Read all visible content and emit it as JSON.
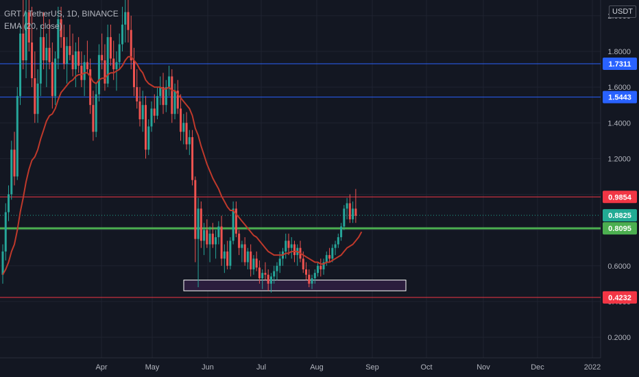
{
  "header": {
    "symbol_line": "GRT / TetherUS, 1D, BINANCE",
    "indicator_line": "EMA (20, close)",
    "currency": "USDT"
  },
  "colors": {
    "background": "#131722",
    "grid": "#1f2330",
    "axis_text": "#b2b5be",
    "candle_up": "#26a69a",
    "candle_down": "#ef5350",
    "ema": "#c0392b",
    "blue_line": "#2962ff",
    "red_line": "#f23645",
    "green_line": "#4caf50",
    "current_price": "#22ab94",
    "zone_fill": "#2b1d3d",
    "zone_border": "#ffffff"
  },
  "chart_data": {
    "type": "candlestick",
    "title": "GRT / TetherUS, 1D, BINANCE",
    "x_ticks": [
      "Apr",
      "May",
      "Jun",
      "Jul",
      "Aug",
      "Sep",
      "Oct",
      "Nov",
      "Dec",
      "2022"
    ],
    "y_ticks": [
      "0.2000",
      "0.4000",
      "0.6000",
      "0.8000",
      "1.0000",
      "1.2000",
      "1.4000",
      "1.6000",
      "1.8000",
      "2.0000"
    ],
    "ylim": [
      0.0,
      2.05
    ],
    "grid": true,
    "indicator": "EMA (20, close)",
    "candles": [
      [
        0.55,
        0.72,
        0.5,
        0.68
      ],
      [
        0.68,
        0.95,
        0.63,
        0.9
      ],
      [
        0.9,
        1.05,
        0.85,
        1.0
      ],
      [
        1.0,
        1.3,
        0.97,
        1.25
      ],
      [
        1.25,
        1.35,
        1.05,
        1.1
      ],
      [
        1.1,
        1.6,
        1.08,
        1.55
      ],
      [
        1.55,
        1.95,
        1.5,
        1.9
      ],
      [
        1.9,
        2.1,
        1.7,
        1.75
      ],
      [
        1.75,
        2.1,
        1.65,
        2.02
      ],
      [
        2.02,
        2.1,
        1.8,
        1.85
      ],
      [
        1.85,
        2.05,
        1.6,
        1.65
      ],
      [
        1.65,
        1.8,
        1.4,
        1.45
      ],
      [
        1.45,
        1.7,
        1.4,
        1.62
      ],
      [
        1.62,
        1.95,
        1.55,
        1.88
      ],
      [
        1.88,
        2.02,
        1.7,
        1.75
      ],
      [
        1.75,
        1.9,
        1.6,
        1.82
      ],
      [
        1.82,
        1.98,
        1.7,
        1.74
      ],
      [
        1.74,
        1.85,
        1.48,
        1.55
      ],
      [
        1.55,
        1.8,
        1.5,
        1.76
      ],
      [
        1.76,
        2.05,
        1.7,
        1.98
      ],
      [
        1.98,
        2.05,
        1.82,
        1.88
      ],
      [
        1.88,
        1.95,
        1.7,
        1.73
      ],
      [
        1.73,
        1.88,
        1.62,
        1.83
      ],
      [
        1.83,
        1.95,
        1.75,
        1.78
      ],
      [
        1.78,
        1.9,
        1.66,
        1.7
      ],
      [
        1.7,
        1.85,
        1.6,
        1.8
      ],
      [
        1.8,
        1.88,
        1.68,
        1.72
      ],
      [
        1.72,
        1.8,
        1.6,
        1.64
      ],
      [
        1.64,
        1.78,
        1.55,
        1.74
      ],
      [
        1.74,
        1.86,
        1.68,
        1.7
      ],
      [
        1.7,
        1.76,
        1.45,
        1.5
      ],
      [
        1.5,
        1.58,
        1.3,
        1.35
      ],
      [
        1.35,
        1.62,
        1.32,
        1.56
      ],
      [
        1.56,
        1.84,
        1.52,
        1.78
      ],
      [
        1.78,
        1.9,
        1.7,
        1.75
      ],
      [
        1.75,
        1.84,
        1.58,
        1.62
      ],
      [
        1.62,
        1.95,
        1.6,
        1.88
      ],
      [
        1.88,
        1.95,
        1.72,
        1.76
      ],
      [
        1.76,
        1.86,
        1.64,
        1.7
      ],
      [
        1.7,
        1.8,
        1.58,
        1.74
      ],
      [
        1.74,
        1.9,
        1.7,
        1.84
      ],
      [
        1.84,
        2.05,
        1.8,
        1.95
      ],
      [
        1.95,
        2.1,
        1.85,
        2.02
      ],
      [
        2.02,
        2.1,
        1.85,
        1.92
      ],
      [
        1.92,
        2.0,
        1.7,
        1.75
      ],
      [
        1.75,
        1.82,
        1.55,
        1.6
      ],
      [
        1.6,
        1.7,
        1.48,
        1.52
      ],
      [
        1.52,
        1.6,
        1.38,
        1.42
      ],
      [
        1.42,
        1.58,
        1.35,
        1.5
      ],
      [
        1.5,
        1.55,
        1.2,
        1.25
      ],
      [
        1.25,
        1.42,
        1.22,
        1.38
      ],
      [
        1.38,
        1.52,
        1.35,
        1.48
      ],
      [
        1.48,
        1.56,
        1.4,
        1.44
      ],
      [
        1.44,
        1.6,
        1.42,
        1.55
      ],
      [
        1.55,
        1.66,
        1.5,
        1.6
      ],
      [
        1.6,
        1.68,
        1.45,
        1.5
      ],
      [
        1.5,
        1.64,
        1.46,
        1.6
      ],
      [
        1.6,
        1.72,
        1.55,
        1.66
      ],
      [
        1.66,
        1.7,
        1.4,
        1.45
      ],
      [
        1.45,
        1.62,
        1.42,
        1.58
      ],
      [
        1.58,
        1.64,
        1.45,
        1.48
      ],
      [
        1.48,
        1.56,
        1.3,
        1.35
      ],
      [
        1.35,
        1.45,
        1.28,
        1.4
      ],
      [
        1.4,
        1.46,
        1.25,
        1.28
      ],
      [
        1.28,
        1.36,
        1.22,
        1.32
      ],
      [
        1.32,
        1.36,
        1.05,
        1.08
      ],
      [
        1.08,
        1.1,
        0.62,
        0.75
      ],
      [
        0.75,
        0.98,
        0.48,
        0.92
      ],
      [
        0.92,
        0.96,
        0.7,
        0.74
      ],
      [
        0.74,
        0.84,
        0.66,
        0.8
      ],
      [
        0.8,
        0.86,
        0.7,
        0.72
      ],
      [
        0.72,
        0.82,
        0.62,
        0.78
      ],
      [
        0.78,
        0.84,
        0.7,
        0.72
      ],
      [
        0.72,
        0.8,
        0.64,
        0.76
      ],
      [
        0.76,
        0.85,
        0.72,
        0.82
      ],
      [
        0.82,
        0.88,
        0.6,
        0.64
      ],
      [
        0.64,
        0.72,
        0.56,
        0.68
      ],
      [
        0.68,
        0.74,
        0.58,
        0.6
      ],
      [
        0.6,
        0.76,
        0.58,
        0.74
      ],
      [
        0.74,
        0.96,
        0.72,
        0.92
      ],
      [
        0.92,
        0.96,
        0.76,
        0.78
      ],
      [
        0.78,
        0.8,
        0.66,
        0.7
      ],
      [
        0.7,
        0.74,
        0.62,
        0.72
      ],
      [
        0.72,
        0.76,
        0.6,
        0.62
      ],
      [
        0.62,
        0.7,
        0.58,
        0.68
      ],
      [
        0.68,
        0.72,
        0.54,
        0.58
      ],
      [
        0.58,
        0.66,
        0.55,
        0.64
      ],
      [
        0.64,
        0.68,
        0.57,
        0.59
      ],
      [
        0.59,
        0.63,
        0.5,
        0.53
      ],
      [
        0.53,
        0.58,
        0.47,
        0.56
      ],
      [
        0.56,
        0.62,
        0.52,
        0.55
      ],
      [
        0.55,
        0.58,
        0.46,
        0.5
      ],
      [
        0.5,
        0.56,
        0.45,
        0.54
      ],
      [
        0.54,
        0.6,
        0.5,
        0.57
      ],
      [
        0.57,
        0.62,
        0.52,
        0.6
      ],
      [
        0.6,
        0.68,
        0.56,
        0.64
      ],
      [
        0.64,
        0.7,
        0.6,
        0.68
      ],
      [
        0.68,
        0.78,
        0.64,
        0.74
      ],
      [
        0.74,
        0.78,
        0.66,
        0.7
      ],
      [
        0.7,
        0.76,
        0.64,
        0.72
      ],
      [
        0.72,
        0.74,
        0.62,
        0.66
      ],
      [
        0.66,
        0.72,
        0.6,
        0.7
      ],
      [
        0.7,
        0.74,
        0.62,
        0.64
      ],
      [
        0.64,
        0.68,
        0.56,
        0.58
      ],
      [
        0.58,
        0.62,
        0.52,
        0.55
      ],
      [
        0.55,
        0.58,
        0.48,
        0.5
      ],
      [
        0.5,
        0.55,
        0.47,
        0.53
      ],
      [
        0.53,
        0.58,
        0.5,
        0.56
      ],
      [
        0.56,
        0.62,
        0.54,
        0.6
      ],
      [
        0.6,
        0.64,
        0.54,
        0.58
      ],
      [
        0.58,
        0.64,
        0.55,
        0.62
      ],
      [
        0.62,
        0.68,
        0.6,
        0.66
      ],
      [
        0.66,
        0.7,
        0.62,
        0.64
      ],
      [
        0.64,
        0.72,
        0.62,
        0.7
      ],
      [
        0.7,
        0.74,
        0.66,
        0.72
      ],
      [
        0.72,
        0.78,
        0.7,
        0.76
      ],
      [
        0.76,
        0.84,
        0.74,
        0.82
      ],
      [
        0.82,
        0.94,
        0.8,
        0.92
      ],
      [
        0.92,
        0.98,
        0.86,
        0.95
      ],
      [
        0.95,
        1.0,
        0.84,
        0.86
      ],
      [
        0.86,
        0.96,
        0.84,
        0.92
      ],
      [
        0.92,
        1.03,
        0.84,
        0.88
      ]
    ],
    "ema": [
      0.55,
      0.58,
      0.62,
      0.68,
      0.72,
      0.8,
      0.9,
      0.98,
      1.07,
      1.14,
      1.19,
      1.21,
      1.25,
      1.31,
      1.36,
      1.41,
      1.44,
      1.45,
      1.48,
      1.53,
      1.57,
      1.59,
      1.61,
      1.63,
      1.64,
      1.66,
      1.67,
      1.67,
      1.68,
      1.68,
      1.66,
      1.63,
      1.62,
      1.64,
      1.65,
      1.65,
      1.67,
      1.68,
      1.68,
      1.69,
      1.7,
      1.72,
      1.75,
      1.77,
      1.77,
      1.75,
      1.73,
      1.7,
      1.68,
      1.64,
      1.62,
      1.61,
      1.6,
      1.6,
      1.6,
      1.59,
      1.59,
      1.6,
      1.58,
      1.58,
      1.56,
      1.54,
      1.52,
      1.5,
      1.48,
      1.44,
      1.37,
      1.33,
      1.27,
      1.22,
      1.17,
      1.13,
      1.09,
      1.06,
      1.03,
      0.99,
      0.96,
      0.93,
      0.91,
      0.91,
      0.89,
      0.87,
      0.85,
      0.83,
      0.81,
      0.79,
      0.77,
      0.76,
      0.74,
      0.72,
      0.7,
      0.68,
      0.67,
      0.66,
      0.66,
      0.66,
      0.66,
      0.67,
      0.67,
      0.68,
      0.68,
      0.68,
      0.67,
      0.66,
      0.65,
      0.64,
      0.63,
      0.62,
      0.62,
      0.61,
      0.61,
      0.62,
      0.62,
      0.63,
      0.64,
      0.65,
      0.66,
      0.68,
      0.7,
      0.71,
      0.72,
      0.74
    ],
    "ema_extension": [
      0.76,
      0.79
    ],
    "horizontal_levels": [
      {
        "price": 1.7311,
        "label": "1.7311",
        "color": "#2962ff"
      },
      {
        "price": 1.5443,
        "label": "1.5443",
        "color": "#2962ff"
      },
      {
        "price": 0.9854,
        "label": "0.9854",
        "color": "#f23645"
      },
      {
        "price": 0.8095,
        "label": "0.8095",
        "color": "#4caf50"
      },
      {
        "price": 0.4232,
        "label": "0.4232",
        "color": "#f23645"
      }
    ],
    "current_price": {
      "price": 0.8825,
      "label": "0.8825"
    },
    "zone": {
      "top": 0.52,
      "bottom": 0.46,
      "start_index": 66,
      "end_date": "Sep"
    }
  }
}
